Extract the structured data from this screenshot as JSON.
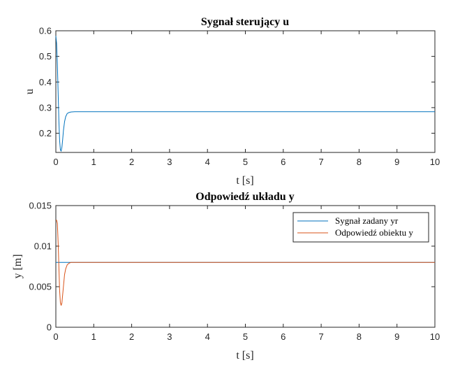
{
  "colors": {
    "series1": "#0072BD",
    "series2": "#D95319",
    "axis": "#262626",
    "background": "#ffffff"
  },
  "chart_data": [
    {
      "type": "line",
      "title": "Sygnał sterujący u",
      "xlabel": "t [s]",
      "ylabel": "u",
      "xlim": [
        0,
        10
      ],
      "ylim": [
        0.125,
        0.6
      ],
      "xticks": [
        "0",
        "1",
        "2",
        "3",
        "4",
        "5",
        "6",
        "7",
        "8",
        "9",
        "10"
      ],
      "yticks": [
        "0.2",
        "0.3",
        "0.4",
        "0.5",
        "0.6"
      ],
      "grid": false,
      "series": [
        {
          "color": "#0072BD",
          "x": [
            0,
            0.02,
            0.04,
            0.06,
            0.08,
            0.1,
            0.12,
            0.14,
            0.16,
            0.18,
            0.2,
            0.23,
            0.26,
            0.3,
            0.35,
            0.4,
            0.5,
            0.7,
            1.0,
            10
          ],
          "y": [
            0.58,
            0.55,
            0.47,
            0.36,
            0.25,
            0.17,
            0.135,
            0.13,
            0.145,
            0.175,
            0.21,
            0.245,
            0.265,
            0.277,
            0.281,
            0.283,
            0.284,
            0.284,
            0.284,
            0.284
          ]
        }
      ]
    },
    {
      "type": "line",
      "title": "Odpowiedź układu y",
      "xlabel": "t [s]",
      "ylabel": "y [m]",
      "xlim": [
        0,
        10
      ],
      "ylim": [
        0,
        0.015
      ],
      "xticks": [
        "0",
        "1",
        "2",
        "3",
        "4",
        "5",
        "6",
        "7",
        "8",
        "9",
        "10"
      ],
      "yticks": [
        "0",
        "0.005",
        "0.01",
        "0.015"
      ],
      "grid": false,
      "legend_position": "top-right",
      "series": [
        {
          "name": "Sygnał zadany yr",
          "color": "#0072BD",
          "x": [
            0,
            10
          ],
          "y": [
            0.008,
            0.008
          ]
        },
        {
          "name": "Odpowiedź obiektu y",
          "color": "#D95319",
          "x": [
            0,
            0.02,
            0.04,
            0.06,
            0.08,
            0.1,
            0.12,
            0.14,
            0.16,
            0.18,
            0.2,
            0.23,
            0.26,
            0.3,
            0.35,
            0.4,
            0.5,
            0.7,
            1.0,
            10
          ],
          "y": [
            0.0132,
            0.0132,
            0.0128,
            0.0105,
            0.0075,
            0.0045,
            0.003,
            0.0027,
            0.003,
            0.004,
            0.005,
            0.0065,
            0.0072,
            0.0077,
            0.0079,
            0.008,
            0.008,
            0.008,
            0.008,
            0.008
          ]
        }
      ]
    }
  ]
}
